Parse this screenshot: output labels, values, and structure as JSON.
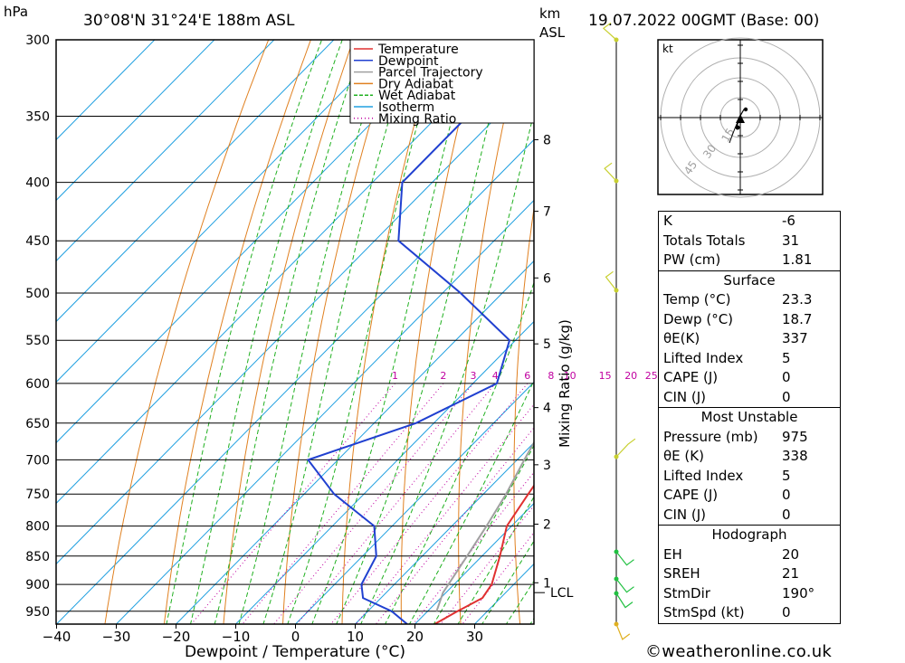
{
  "header": {
    "pressure_unit": "hPa",
    "location": "30°08'N  31°24'E  188m  ASL",
    "height_unit_line1": "km",
    "height_unit_line2": "ASL",
    "datetime": "19.07.2022  00GMT  (Base: 00)"
  },
  "chart_data": {
    "type": "line",
    "chart_kind": "skew-T log-P diagram",
    "xlabel": "Dewpoint / Temperature (°C)",
    "ylabel": "hPa",
    "xlim": [
      -40,
      40
    ],
    "ylim": [
      300,
      975
    ],
    "y_scale": "log (inverted)",
    "grid": true,
    "legend_position": "top",
    "x_ticks": [
      -40,
      -30,
      -20,
      -10,
      0,
      10,
      20,
      30
    ],
    "x_tick_labels": [
      "−40",
      "−30",
      "−20",
      "−10",
      "0",
      "10",
      "20",
      "30"
    ],
    "pressure_levels": [
      300,
      350,
      400,
      450,
      500,
      550,
      600,
      650,
      700,
      750,
      800,
      850,
      900,
      950
    ],
    "height_axis_label": "km ASL",
    "height_ticks": [
      {
        "label": "8",
        "p": 367
      },
      {
        "label": "7",
        "p": 424
      },
      {
        "label": "6",
        "p": 485
      },
      {
        "label": "5",
        "p": 554
      },
      {
        "label": "4",
        "p": 630
      },
      {
        "label": "3",
        "p": 707
      },
      {
        "label": "2",
        "p": 797
      },
      {
        "label": "1",
        "p": 897
      }
    ],
    "lcl": {
      "label": "LCL",
      "p": 915
    },
    "mixing_ratio_axis_label": "Mixing Ratio (g/kg)",
    "mixing_ratio_labels": [
      "1",
      "2",
      "3",
      "4",
      "6",
      "8",
      "10",
      "15",
      "20",
      "25"
    ],
    "legend": [
      "Temperature",
      "Dewpoint",
      "Parcel Trajectory",
      "Dry Adiabat",
      "Wet Adiabat",
      "Isotherm",
      "Mixing Ratio"
    ],
    "series": [
      {
        "name": "Temperature",
        "color": "#e03030",
        "points": [
          [
            975,
            23.3
          ],
          [
            950,
            25
          ],
          [
            925,
            27
          ],
          [
            900,
            26.3
          ],
          [
            850,
            23
          ],
          [
            800,
            19.2
          ],
          [
            750,
            17.5
          ],
          [
            700,
            15.8
          ],
          [
            650,
            12.3
          ],
          [
            600,
            7
          ],
          [
            550,
            2.5
          ],
          [
            500,
            -1.5
          ],
          [
            450,
            -6.2
          ],
          [
            400,
            -12.5
          ],
          [
            360,
            -18.7
          ]
        ]
      },
      {
        "name": "Dewpoint",
        "color": "#2040d0",
        "points": [
          [
            975,
            18.7
          ],
          [
            950,
            14
          ],
          [
            925,
            7
          ],
          [
            900,
            4.5
          ],
          [
            850,
            2.3
          ],
          [
            800,
            -3
          ],
          [
            750,
            -15
          ],
          [
            700,
            -25
          ],
          [
            650,
            -13
          ],
          [
            600,
            -6
          ],
          [
            550,
            -11
          ],
          [
            500,
            -27
          ],
          [
            450,
            -46
          ],
          [
            400,
            -55
          ],
          [
            350,
            -55
          ],
          [
            300,
            -56
          ]
        ]
      },
      {
        "name": "Parcel Trajectory",
        "color": "#a0a0a0",
        "points": [
          [
            950,
            21.5
          ],
          [
            915,
            19.5
          ],
          [
            850,
            17.5
          ],
          [
            800,
            15.8
          ],
          [
            750,
            13.8
          ],
          [
            700,
            11.2
          ],
          [
            650,
            8.6
          ],
          [
            600,
            5.5
          ],
          [
            550,
            1.5
          ],
          [
            500,
            -3.5
          ],
          [
            450,
            -9.5
          ],
          [
            400,
            -17
          ],
          [
            350,
            -26.5
          ],
          [
            300,
            -39
          ]
        ]
      }
    ]
  },
  "hodograph": {
    "unit": "kt",
    "ring_labels": [
      "15",
      "30",
      "45"
    ]
  },
  "indices": {
    "k": {
      "label": "K",
      "value": "-6"
    },
    "totals": {
      "label": "Totals Totals",
      "value": "31"
    },
    "pw": {
      "label": "PW (cm)",
      "value": "1.81"
    }
  },
  "surface": {
    "title": "Surface",
    "temp": {
      "label": "Temp (°C)",
      "value": "23.3"
    },
    "dewp": {
      "label": "Dewp (°C)",
      "value": "18.7"
    },
    "theta_e": {
      "label": "θE(K)",
      "value": "337"
    },
    "lifted_index": {
      "label": "Lifted Index",
      "value": "5"
    },
    "cape": {
      "label": "CAPE (J)",
      "value": "0"
    },
    "cin": {
      "label": "CIN (J)",
      "value": "0"
    }
  },
  "most_unstable": {
    "title": "Most Unstable",
    "pressure": {
      "label": "Pressure (mb)",
      "value": "975"
    },
    "theta_e": {
      "label": "θE (K)",
      "value": "338"
    },
    "lifted_index": {
      "label": "Lifted Index",
      "value": "5"
    },
    "cape": {
      "label": "CAPE (J)",
      "value": "0"
    },
    "cin": {
      "label": "CIN (J)",
      "value": "0"
    }
  },
  "hodograph_stats": {
    "title": "Hodograph",
    "eh": {
      "label": "EH",
      "value": "20"
    },
    "sreh": {
      "label": "SREH",
      "value": "21"
    },
    "stmdir": {
      "label": "StmDir",
      "value": "190°"
    },
    "stmspd": {
      "label": "StmSpd (kt)",
      "value": "0"
    }
  },
  "footer": "©weatheronline.co.uk",
  "colors": {
    "temperature": "#e03030",
    "dewpoint": "#2040d0",
    "parcel": "#a0a0a0",
    "dry_adiabat": "#e08020",
    "wet_adiabat": "#20b020",
    "isotherm": "#20a0e0",
    "mixing_ratio": "#c000a0",
    "wind_barbs": "#c0d020"
  }
}
